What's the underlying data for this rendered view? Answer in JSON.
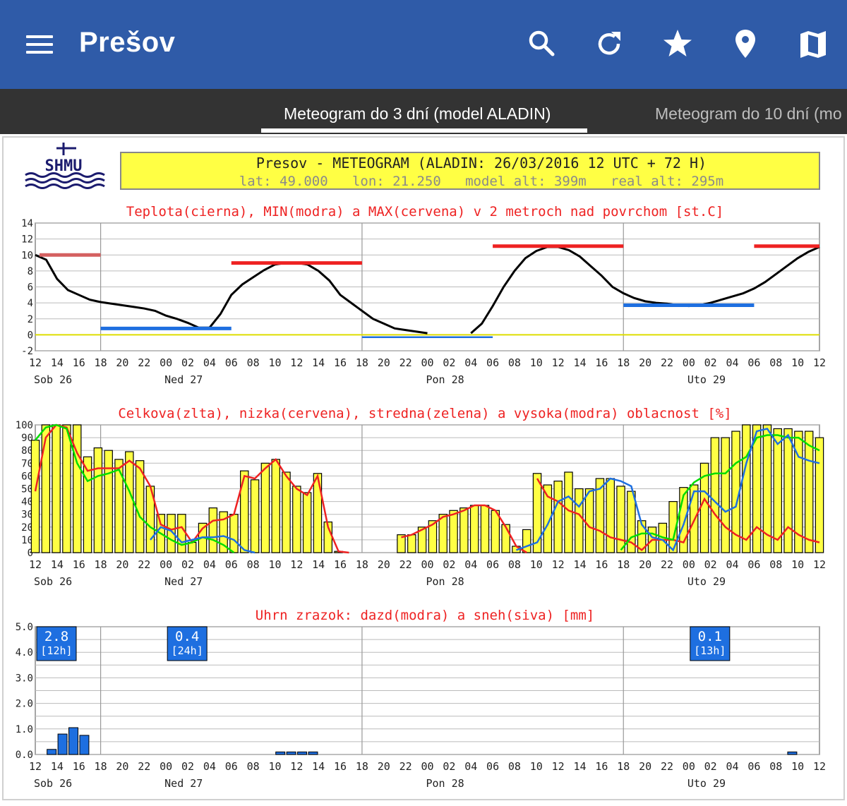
{
  "app": {
    "title": "Prešov"
  },
  "toolbar_icons": [
    "search-icon",
    "refresh-icon",
    "star-icon",
    "location-pin-icon",
    "map-icon"
  ],
  "tabs": [
    {
      "label": "Meteogram do 3 dní (model ALADIN)",
      "active": true
    },
    {
      "label": "Meteogram do 10 dní (mo",
      "active": false
    }
  ],
  "logo_text": "SHMU",
  "header": {
    "line1": "Presov - METEOGRAM (ALADIN: 26/03/2016 12 UTC + 72 H)",
    "line2": "lat: 49.000   lon: 21.250   model_alt: 399m   real_alt: 295m"
  },
  "hour_ticks": [
    "12",
    "14",
    "16",
    "18",
    "20",
    "22",
    "00",
    "02",
    "04",
    "06",
    "08",
    "10",
    "12",
    "14",
    "16",
    "18",
    "20",
    "22",
    "00",
    "02",
    "04",
    "06",
    "08",
    "10",
    "12",
    "14",
    "16",
    "18",
    "20",
    "22",
    "00",
    "02",
    "04",
    "06",
    "08",
    "10",
    "12"
  ],
  "day_labels": [
    "Sob 26",
    "Ned 27",
    "Pon 28",
    "Uto 29"
  ],
  "colors": {
    "appbar": "#2f5ba8",
    "tabbar": "#333333",
    "header_box": "#ffff44",
    "temp": "#000000",
    "min": "#1e6fe0",
    "max": "#ee2222",
    "zero_line": "#dddd00",
    "total_cloud": "#ffff44",
    "low_cloud": "#ee2222",
    "mid_cloud": "#00dd00",
    "high_cloud": "#1e6fe0",
    "rain": "#1e6fe0"
  },
  "chart_data": [
    {
      "type": "line",
      "title": "Teplota(cierna), MIN(modra) a MAX(cervena) v 2 metroch nad povrchom [st.C]",
      "x_hours": [
        0,
        1,
        2,
        3,
        4,
        5,
        6,
        7,
        8,
        9,
        10,
        11,
        12,
        13,
        14,
        15,
        16,
        17,
        18,
        19,
        20,
        21,
        22,
        23,
        24,
        25,
        26,
        27,
        28,
        29,
        30,
        31,
        32,
        33,
        34,
        35,
        36,
        37,
        38,
        39,
        40,
        41,
        42,
        43,
        44,
        45,
        46,
        47,
        48,
        49,
        50,
        51,
        52,
        53,
        54,
        55,
        56,
        57,
        58,
        59,
        60,
        61,
        62,
        63,
        64,
        65,
        66,
        67,
        68,
        69,
        70,
        71,
        72
      ],
      "ylim": [
        -2,
        14
      ],
      "yticks": [
        "14",
        "12",
        "10",
        "8",
        "6",
        "4",
        "2",
        "0",
        "-2"
      ],
      "series": [
        {
          "name": "Teplota",
          "values": [
            10,
            9.4,
            7,
            5.6,
            5,
            4.4,
            4.1,
            3.9,
            3.7,
            3.5,
            3.3,
            3,
            2.4,
            2,
            1.5,
            0.9,
            0.9,
            2.6,
            5,
            6.3,
            7.2,
            8.1,
            8.8,
            9.0,
            9.0,
            8.8,
            8.0,
            6.8,
            5.0,
            4.0,
            3.0,
            2.0,
            1.4,
            0.8,
            0.6,
            0.4,
            0.2,
            null,
            null,
            null,
            0.2,
            1.4,
            3.6,
            6.0,
            8.0,
            9.6,
            10.5,
            11.0,
            11.0,
            10.6,
            9.8,
            8.6,
            7.4,
            6.0,
            5.2,
            4.6,
            4.2,
            4.0,
            3.9,
            3.7,
            3.6,
            3.7,
            4.0,
            4.4,
            4.8,
            5.2,
            5.8,
            6.6,
            7.6,
            8.6,
            9.6,
            10.4,
            11.0
          ]
        },
        {
          "name": "MIN",
          "segments": [
            {
              "from": 6,
              "to": 18,
              "value": 0.8
            },
            {
              "from": 30,
              "to": 42,
              "value": -0.3
            },
            {
              "from": 54,
              "to": 66,
              "value": 3.7
            }
          ]
        },
        {
          "name": "MAX",
          "segments": [
            {
              "from": 0,
              "to": 6,
              "value": 10
            },
            {
              "from": 18,
              "to": 30,
              "value": 9
            },
            {
              "from": 42,
              "to": 54,
              "value": 11.1
            },
            {
              "from": 66,
              "to": 72,
              "value": 11.1
            }
          ]
        }
      ]
    },
    {
      "type": "bar",
      "title": "Celkova(zlta), nizka(cervena), stredna(zelena) a vysoka(modra) oblacnost [%]",
      "ylim": [
        0,
        100
      ],
      "yticks": [
        "100",
        "90",
        "80",
        "70",
        "60",
        "50",
        "40",
        "30",
        "20",
        "10",
        "0"
      ],
      "series": [
        {
          "name": "Celkova",
          "values": [
            88,
            100,
            100,
            100,
            100,
            75,
            82,
            80,
            73,
            79,
            72,
            52,
            30,
            30,
            30,
            8,
            23,
            35,
            32,
            30,
            64,
            57,
            70,
            73,
            63,
            52,
            47,
            62,
            24,
            1,
            0,
            0,
            0,
            0,
            0,
            14,
            14,
            20,
            25,
            30,
            33,
            35,
            37,
            37,
            33,
            22,
            5,
            18,
            62,
            53,
            56,
            63,
            50,
            50,
            58,
            58,
            52,
            48,
            25,
            20,
            23,
            40,
            51,
            53,
            70,
            90,
            90,
            95,
            100,
            100,
            100,
            97,
            97,
            95,
            95,
            90
          ]
        },
        {
          "name": "nizka",
          "values": [
            48,
            90,
            100,
            98,
            78,
            64,
            66,
            66,
            66,
            72,
            66,
            52,
            22,
            18,
            20,
            8,
            19,
            25,
            26,
            30,
            60,
            58,
            66,
            73,
            60,
            50,
            45,
            60,
            20,
            1,
            0,
            0,
            0,
            0,
            0,
            12,
            14,
            18,
            22,
            28,
            30,
            33,
            37,
            37,
            33,
            20,
            5,
            0,
            58,
            44,
            40,
            33,
            30,
            20,
            17,
            12,
            10,
            8,
            2,
            10,
            10,
            10,
            8,
            25,
            42,
            30,
            20,
            14,
            10,
            20,
            14,
            10,
            20,
            14,
            10,
            8
          ]
        },
        {
          "name": "stredna",
          "values": [
            88,
            98,
            100,
            97,
            70,
            56,
            60,
            62,
            65,
            48,
            28,
            20,
            15,
            10,
            6,
            8,
            12,
            10,
            6,
            0,
            0,
            0,
            0,
            0,
            0,
            0,
            0,
            0,
            0,
            0,
            0,
            0,
            0,
            0,
            0,
            0,
            0,
            0,
            0,
            0,
            0,
            0,
            0,
            0,
            0,
            0,
            0,
            0,
            0,
            0,
            0,
            0,
            0,
            0,
            0,
            0,
            2,
            12,
            15,
            15,
            12,
            10,
            45,
            55,
            60,
            62,
            62,
            70,
            75,
            90,
            92,
            92,
            90,
            90,
            84,
            80
          ]
        },
        {
          "name": "vysoka",
          "values": [
            0,
            0,
            0,
            0,
            0,
            0,
            0,
            0,
            0,
            0,
            0,
            10,
            20,
            17,
            8,
            10,
            12,
            12,
            13,
            10,
            2,
            0,
            0,
            0,
            0,
            0,
            0,
            0,
            0,
            0,
            0,
            0,
            0,
            0,
            0,
            0,
            0,
            0,
            0,
            0,
            0,
            0,
            0,
            0,
            0,
            0,
            2,
            5,
            8,
            22,
            40,
            44,
            36,
            48,
            50,
            58,
            56,
            52,
            22,
            12,
            10,
            2,
            22,
            48,
            48,
            40,
            32,
            36,
            70,
            95,
            97,
            85,
            92,
            75,
            72,
            70
          ]
        }
      ]
    },
    {
      "type": "bar",
      "title": "Uhrn zrazok: dazd(modra) a sneh(siva) [mm]",
      "ylim": [
        0,
        5.0
      ],
      "yticks": [
        "5.0",
        "4.0",
        "3.0",
        "2.0",
        "1.0",
        "0.0"
      ],
      "series": [
        {
          "name": "dazd",
          "bars": [
            {
              "hour": 1,
              "value": 0.2
            },
            {
              "hour": 2,
              "value": 0.8
            },
            {
              "hour": 3,
              "value": 1.05
            },
            {
              "hour": 4,
              "value": 0.75
            },
            {
              "hour": 22,
              "value": 0.1
            },
            {
              "hour": 23,
              "value": 0.1
            },
            {
              "hour": 24,
              "value": 0.1
            },
            {
              "hour": 25,
              "value": 0.1
            },
            {
              "hour": 69,
              "value": 0.1
            }
          ]
        }
      ],
      "totals": [
        {
          "value": "2.8",
          "period": "[12h]",
          "hour": 0
        },
        {
          "value": "0.4",
          "period": "[24h]",
          "hour": 12
        },
        {
          "value": "0.1",
          "period": "[13h]",
          "hour": 60
        }
      ]
    }
  ]
}
